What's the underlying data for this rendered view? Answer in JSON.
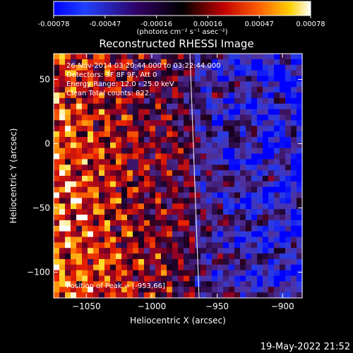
{
  "chart_data": {
    "type": "heatmap",
    "title": "Reconstructed RHESSI Image",
    "xlabel": "Heliocentric X (arcsec)",
    "ylabel": "Heliocentric Y (arcsec)",
    "xlim": [
      -1075,
      -885
    ],
    "ylim": [
      -120,
      70
    ],
    "x_ticks": [
      -1050,
      -1000,
      -950,
      -900
    ],
    "y_ticks": [
      -100,
      -50,
      0,
      50
    ],
    "colorbar": {
      "label": "(photons cm⁻² s⁻¹ asec⁻²)",
      "range": [
        -0.00078,
        0.00078
      ],
      "ticks": [
        "-0.00078",
        "-0.00047",
        "-0.00016",
        "0.00016",
        "0.00047",
        "0.00078"
      ]
    },
    "annotations": [
      "26-Nov-2014 03:20:44.000 to 03:22:44.000",
      "Detectors: 3F 8F 9F, Att 0",
      "Energy Range: 12.0 - 25.0 keV",
      "Clean     Total counts: 822."
    ],
    "peak_label": "Position of Peak = [-953,66]",
    "peak": [
      -953,
      66
    ],
    "grid": false,
    "timestamp": "19-May-2022 21:52"
  },
  "colors": {
    "background": "#000000",
    "axes": "#ffffff",
    "colormap": [
      "#0000ff",
      "#000000",
      "#ff2000",
      "#ffff00",
      "#ffffff"
    ]
  }
}
